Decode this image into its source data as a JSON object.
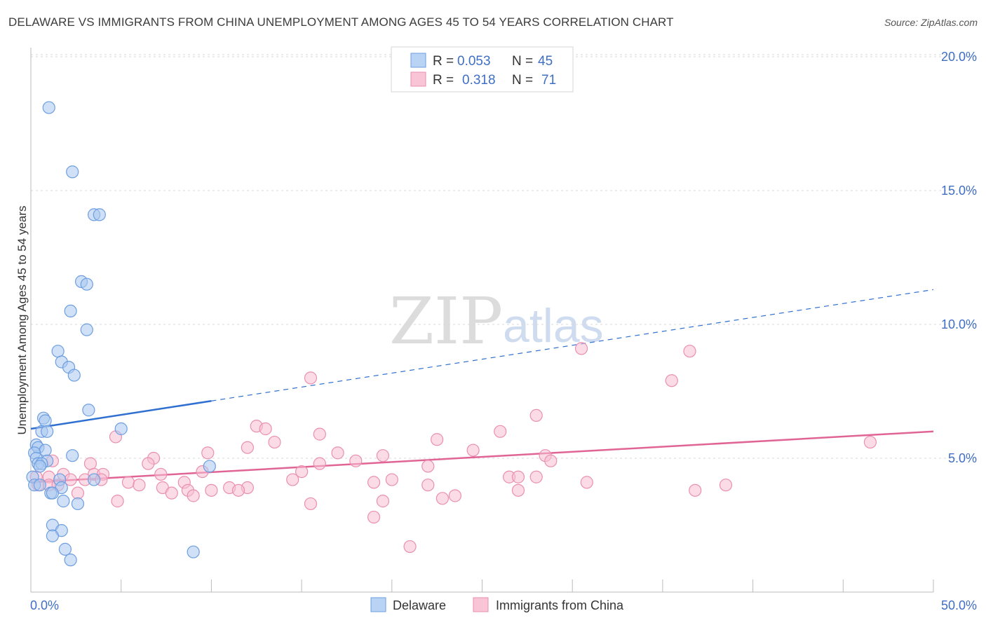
{
  "header": {
    "title": "DELAWARE VS IMMIGRANTS FROM CHINA UNEMPLOYMENT AMONG AGES 45 TO 54 YEARS CORRELATION CHART",
    "source": "Source: ZipAtlas.com"
  },
  "watermark": {
    "zip": "ZIP",
    "atlas": "atlas"
  },
  "legend": {
    "r_label": "R =",
    "n_label": "N =",
    "rows": [
      {
        "r": "0.053",
        "n": "45"
      },
      {
        "r": "0.318",
        "n": "71"
      }
    ]
  },
  "chart_data": {
    "type": "scatter",
    "title": "DELAWARE VS IMMIGRANTS FROM CHINA UNEMPLOYMENT AMONG AGES 45 TO 54 YEARS CORRELATION CHART",
    "xlabel": "",
    "ylabel": "Unemployment Among Ages 45 to 54 years",
    "xlim": [
      0,
      50
    ],
    "ylim": [
      0,
      20.5
    ],
    "x_tick_labels": [
      "0.0%",
      "50.0%"
    ],
    "y_ticks": [
      5,
      10,
      15,
      20
    ],
    "y_tick_labels": [
      "5.0%",
      "10.0%",
      "15.0%",
      "20.0%"
    ],
    "colors": {
      "delaware_fill": "#a9c8f0",
      "delaware_stroke": "#6d9ee0",
      "delaware_line": "#2f6fd0",
      "china_fill": "#f7bfd2",
      "china_stroke": "#ea8fb0",
      "china_line": "#e06595",
      "grid": "#d9d9d9",
      "axis": "#bbbbbb"
    },
    "series": [
      {
        "name": "Delaware",
        "r": 0.053,
        "n": 45,
        "trend": {
          "x0": 0,
          "y0": 6.1,
          "x1": 50,
          "y1": 11.3,
          "solid_until_x": 10
        },
        "points": [
          [
            1.0,
            18.1
          ],
          [
            2.3,
            15.7
          ],
          [
            3.5,
            14.1
          ],
          [
            3.8,
            14.1
          ],
          [
            2.8,
            11.6
          ],
          [
            3.1,
            11.5
          ],
          [
            2.2,
            10.5
          ],
          [
            3.1,
            9.8
          ],
          [
            1.5,
            9.0
          ],
          [
            1.7,
            8.6
          ],
          [
            2.1,
            8.4
          ],
          [
            2.4,
            8.1
          ],
          [
            3.2,
            6.8
          ],
          [
            0.7,
            6.5
          ],
          [
            0.8,
            6.4
          ],
          [
            5.0,
            6.1
          ],
          [
            0.6,
            6.0
          ],
          [
            0.9,
            6.0
          ],
          [
            0.3,
            5.5
          ],
          [
            0.4,
            5.4
          ],
          [
            0.8,
            5.3
          ],
          [
            0.2,
            5.2
          ],
          [
            2.3,
            5.1
          ],
          [
            0.3,
            5.0
          ],
          [
            0.9,
            4.9
          ],
          [
            0.4,
            4.8
          ],
          [
            0.6,
            4.8
          ],
          [
            0.5,
            4.7
          ],
          [
            9.9,
            4.7
          ],
          [
            0.1,
            4.3
          ],
          [
            1.6,
            4.2
          ],
          [
            3.5,
            4.2
          ],
          [
            0.2,
            4.0
          ],
          [
            0.5,
            4.0
          ],
          [
            1.7,
            3.9
          ],
          [
            1.1,
            3.7
          ],
          [
            1.2,
            3.7
          ],
          [
            1.8,
            3.4
          ],
          [
            2.6,
            3.3
          ],
          [
            1.2,
            2.5
          ],
          [
            1.7,
            2.3
          ],
          [
            1.2,
            2.1
          ],
          [
            1.9,
            1.6
          ],
          [
            9.0,
            1.5
          ],
          [
            2.2,
            1.2
          ]
        ]
      },
      {
        "name": "Immigrants from China",
        "r": 0.318,
        "n": 71,
        "trend": {
          "x0": 0,
          "y0": 4.1,
          "x1": 50,
          "y1": 6.0
        },
        "points": [
          [
            30.5,
            9.1
          ],
          [
            36.5,
            9.0
          ],
          [
            15.5,
            8.0
          ],
          [
            35.5,
            7.9
          ],
          [
            28.0,
            6.6
          ],
          [
            12.5,
            6.2
          ],
          [
            13.0,
            6.1
          ],
          [
            26.0,
            6.0
          ],
          [
            16.0,
            5.9
          ],
          [
            4.7,
            5.8
          ],
          [
            22.5,
            5.7
          ],
          [
            46.5,
            5.6
          ],
          [
            13.5,
            5.6
          ],
          [
            12.0,
            5.4
          ],
          [
            24.5,
            5.3
          ],
          [
            9.8,
            5.2
          ],
          [
            17.0,
            5.2
          ],
          [
            19.5,
            5.1
          ],
          [
            28.5,
            5.1
          ],
          [
            6.8,
            5.0
          ],
          [
            1.2,
            4.9
          ],
          [
            18.0,
            4.9
          ],
          [
            28.8,
            4.9
          ],
          [
            16.0,
            4.8
          ],
          [
            3.3,
            4.8
          ],
          [
            6.5,
            4.8
          ],
          [
            22.0,
            4.7
          ],
          [
            9.5,
            4.5
          ],
          [
            15.0,
            4.5
          ],
          [
            3.5,
            4.4
          ],
          [
            1.8,
            4.4
          ],
          [
            4.0,
            4.4
          ],
          [
            7.2,
            4.4
          ],
          [
            26.5,
            4.3
          ],
          [
            27.0,
            4.3
          ],
          [
            28.0,
            4.3
          ],
          [
            1.0,
            4.3
          ],
          [
            2.2,
            4.2
          ],
          [
            3.9,
            4.2
          ],
          [
            14.5,
            4.2
          ],
          [
            20.0,
            4.2
          ],
          [
            5.4,
            4.1
          ],
          [
            8.5,
            4.1
          ],
          [
            19.0,
            4.1
          ],
          [
            30.8,
            4.1
          ],
          [
            22.0,
            4.0
          ],
          [
            6.0,
            4.0
          ],
          [
            38.5,
            4.0
          ],
          [
            1.0,
            4.0
          ],
          [
            0.4,
            4.0
          ],
          [
            12.0,
            3.9
          ],
          [
            7.3,
            3.9
          ],
          [
            11.0,
            3.9
          ],
          [
            10.0,
            3.8
          ],
          [
            11.5,
            3.8
          ],
          [
            8.7,
            3.8
          ],
          [
            36.8,
            3.8
          ],
          [
            27.0,
            3.8
          ],
          [
            7.8,
            3.7
          ],
          [
            9.0,
            3.6
          ],
          [
            2.6,
            3.7
          ],
          [
            23.5,
            3.6
          ],
          [
            22.8,
            3.5
          ],
          [
            4.8,
            3.4
          ],
          [
            15.5,
            3.3
          ],
          [
            19.5,
            3.4
          ],
          [
            19.0,
            2.8
          ],
          [
            21.0,
            1.7
          ],
          [
            0.3,
            4.3
          ],
          [
            1.5,
            4.0
          ],
          [
            3.0,
            4.2
          ]
        ]
      }
    ]
  },
  "bottom_legend": {
    "items": [
      {
        "label": "Delaware"
      },
      {
        "label": "Immigrants from China"
      }
    ]
  }
}
